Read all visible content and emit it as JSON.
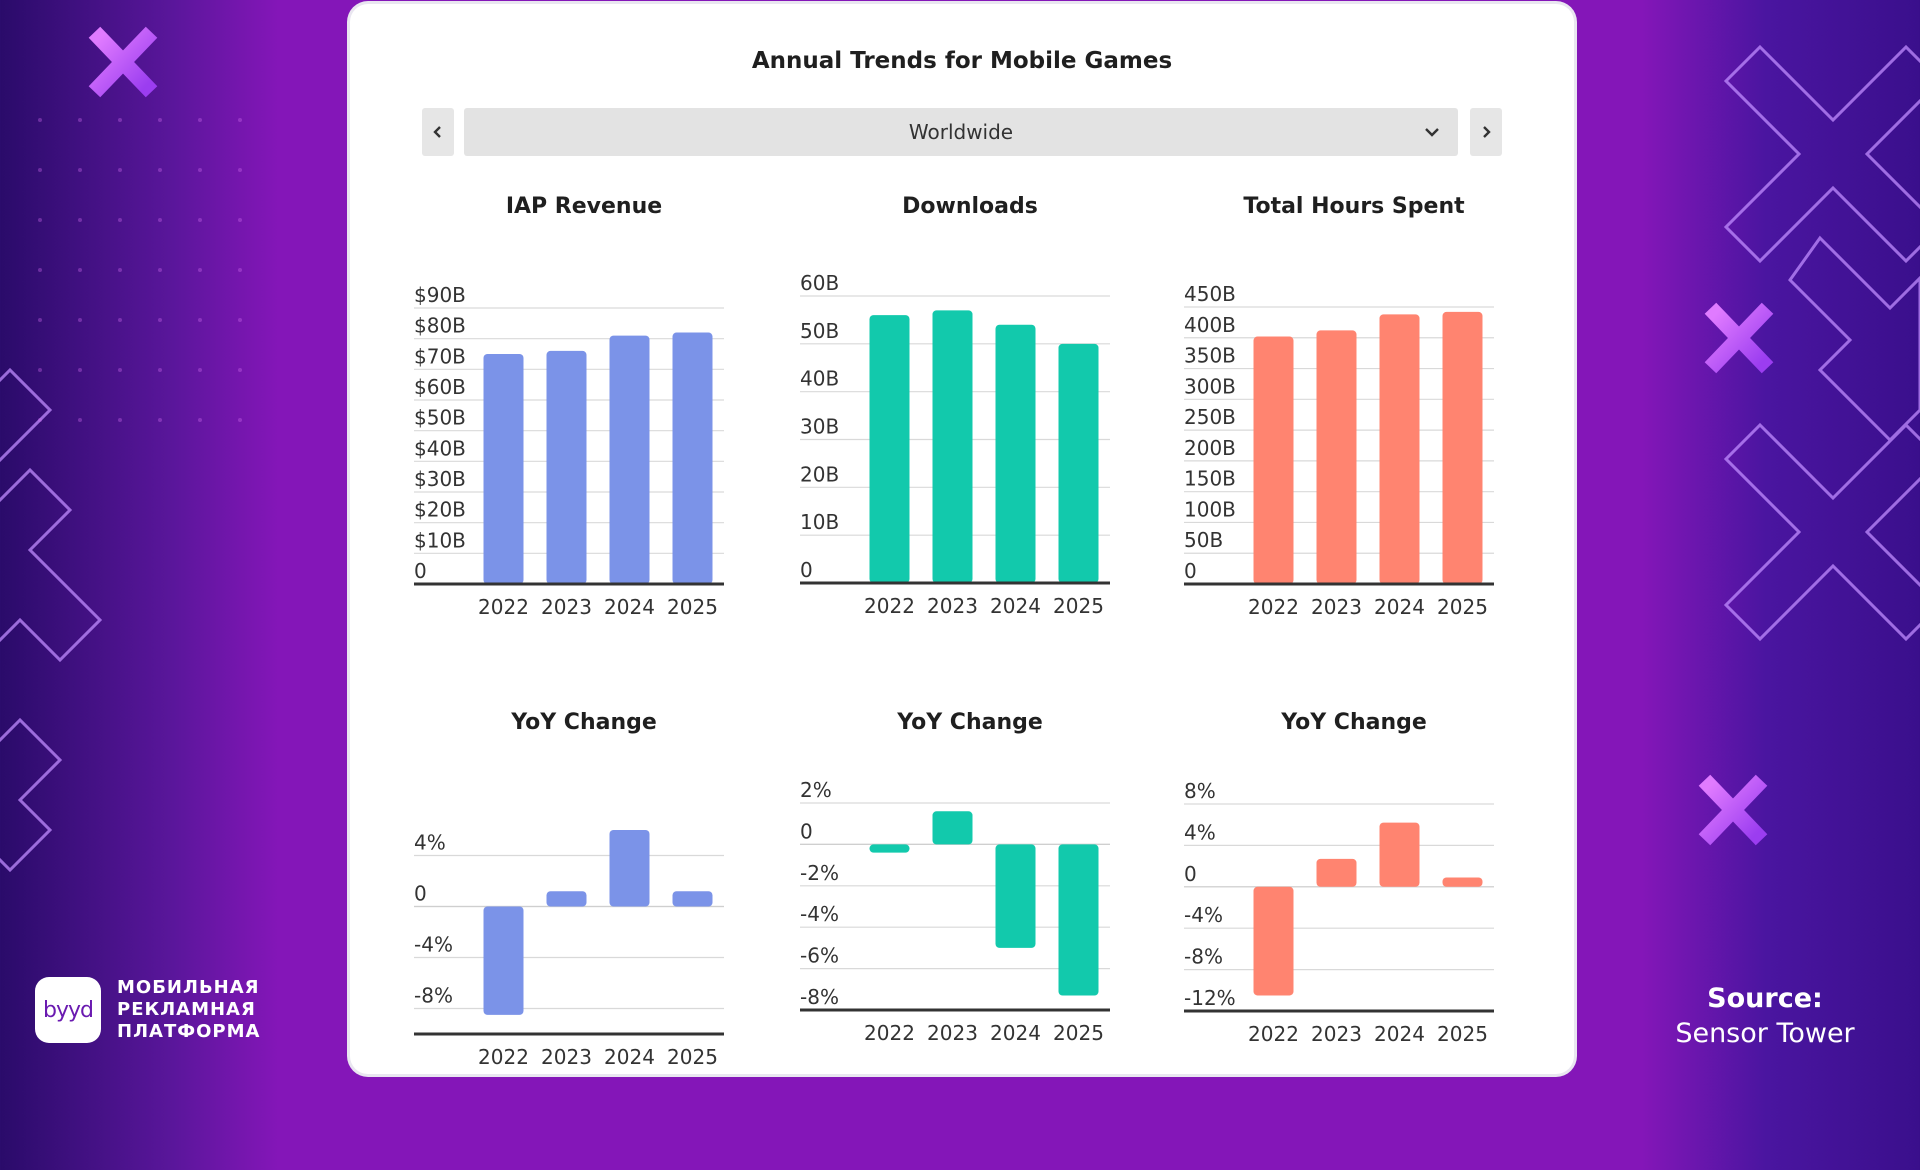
{
  "page": {
    "title": "Annual Trends for Mobile Games",
    "region": {
      "selected": "Worldwide"
    },
    "brand": {
      "logo_text": "byyd",
      "tagline": [
        "МОБИЛЬНАЯ",
        "РЕКЛАМНАЯ",
        "ПЛАТФОРМА"
      ]
    },
    "source": {
      "label": "Source:",
      "value": "Sensor Tower"
    },
    "icons": {
      "prev": "chevron-left-icon",
      "next": "chevron-right-icon",
      "dropdown": "chevron-down-icon"
    }
  },
  "chart_data": [
    {
      "type": "bar",
      "title": "IAP Revenue",
      "categories": [
        "2022",
        "2023",
        "2024",
        "2025"
      ],
      "values": [
        75,
        76,
        81,
        82
      ],
      "ylim": [
        0,
        90
      ],
      "yticks": [
        0,
        10,
        20,
        30,
        40,
        50,
        60,
        70,
        80,
        90
      ],
      "ytick_labels": [
        "0",
        "$10B",
        "$20B",
        "$30B",
        "$40B",
        "$50B",
        "$60B",
        "$70B",
        "$80B",
        "$90B"
      ],
      "color": "#7b93e8",
      "grid": true
    },
    {
      "type": "bar",
      "title": "Downloads",
      "categories": [
        "2022",
        "2023",
        "2024",
        "2025"
      ],
      "values": [
        56,
        57,
        54,
        50
      ],
      "ylim": [
        0,
        60
      ],
      "yticks": [
        0,
        10,
        20,
        30,
        40,
        50,
        60
      ],
      "ytick_labels": [
        "0",
        "10B",
        "20B",
        "30B",
        "40B",
        "50B",
        "60B"
      ],
      "color": "#12c9ac",
      "grid": true
    },
    {
      "type": "bar",
      "title": "Total Hours Spent",
      "categories": [
        "2022",
        "2023",
        "2024",
        "2025"
      ],
      "values": [
        402,
        412,
        438,
        442
      ],
      "ylim": [
        0,
        450
      ],
      "yticks": [
        0,
        50,
        100,
        150,
        200,
        250,
        300,
        350,
        400,
        450
      ],
      "ytick_labels": [
        "0",
        "50B",
        "100B",
        "150B",
        "200B",
        "250B",
        "300B",
        "350B",
        "400B",
        "450B"
      ],
      "color": "#ff8470",
      "grid": true
    },
    {
      "type": "bar",
      "title": "YoY Change",
      "categories": [
        "2022",
        "2023",
        "2024",
        "2025"
      ],
      "values": [
        -8.5,
        1.2,
        6.0,
        1.2
      ],
      "ylim": [
        -10,
        6
      ],
      "yticks": [
        -8,
        -4,
        0,
        4
      ],
      "ytick_labels": [
        "-8%",
        "-4%",
        "0",
        "4%"
      ],
      "color": "#7b93e8",
      "grid": true
    },
    {
      "type": "bar",
      "title": "YoY Change",
      "categories": [
        "2022",
        "2023",
        "2024",
        "2025"
      ],
      "values": [
        -0.4,
        1.6,
        -5.0,
        -7.3
      ],
      "ylim": [
        -8,
        2
      ],
      "yticks": [
        -8,
        -6,
        -4,
        -2,
        0,
        2
      ],
      "ytick_labels": [
        "-8%",
        "-6%",
        "-4%",
        "-2%",
        "0",
        "2%"
      ],
      "color": "#12c9ac",
      "grid": true
    },
    {
      "type": "bar",
      "title": "YoY Change",
      "categories": [
        "2022",
        "2023",
        "2024",
        "2025"
      ],
      "values": [
        -10.5,
        2.7,
        6.2,
        0.9
      ],
      "ylim": [
        -12,
        8
      ],
      "yticks": [
        -12,
        -8,
        -4,
        0,
        4,
        8
      ],
      "ytick_labels": [
        "-12%",
        "-8%",
        "-4%",
        "0",
        "4%",
        "8%"
      ],
      "color": "#ff8470",
      "grid": true
    }
  ]
}
